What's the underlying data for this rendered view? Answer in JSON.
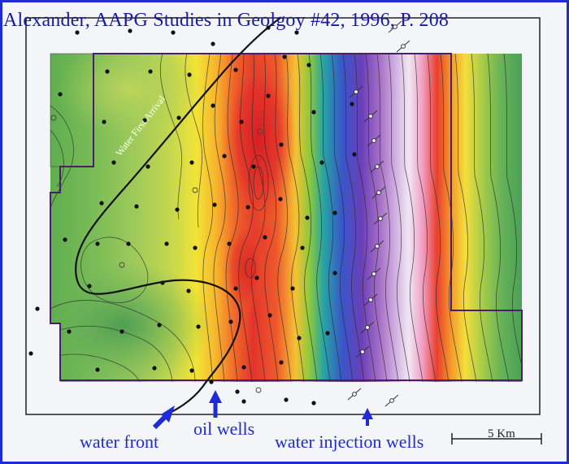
{
  "figure": {
    "citation": "Alexander, AAPG Studies in Geolgoy #42, 1996, P. 208",
    "map_annotation": "Water First Arrival",
    "scale_bar": "5 Km"
  },
  "labels": {
    "water_front": "water front",
    "oil_wells": "oil wells",
    "water_injection_wells": "water injection wells"
  },
  "colors": {
    "annotation_text": "#1f2bd6",
    "lease_boundary": "#4b1d6b",
    "water_front_line": "#111111",
    "well_dot": "#111111"
  },
  "legend_symbols": [
    "oil-well-dot",
    "water-injection-well-symbol"
  ]
}
